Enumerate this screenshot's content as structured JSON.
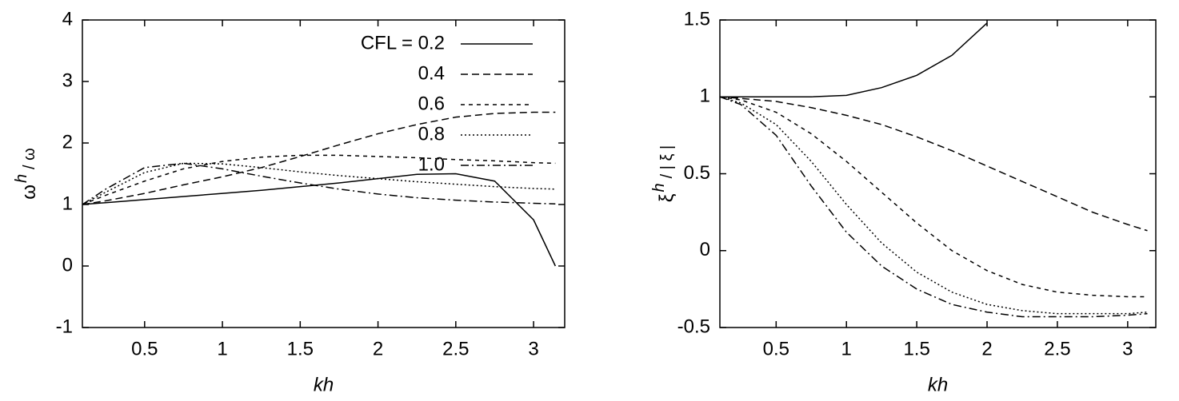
{
  "chart_data": [
    {
      "type": "line",
      "x": [
        0.1,
        0.25,
        0.5,
        0.75,
        1,
        1.25,
        1.5,
        1.75,
        2,
        2.25,
        2.5,
        2.75,
        3,
        3.14
      ],
      "xlim": [
        0.1,
        3.2
      ],
      "ylim": [
        -1,
        4
      ],
      "xticks": [
        0.5,
        1,
        1.5,
        2,
        2.5,
        3
      ],
      "yticks": [
        -1,
        0,
        1,
        2,
        3,
        4
      ],
      "xlabel": "kh",
      "ylabel": [
        "ω",
        "h",
        "/ ω"
      ],
      "legend": "upper right",
      "series": [
        {
          "name": "CFL = 0.2",
          "color": "#000000",
          "dash": "none",
          "values": [
            1.0,
            1.03,
            1.08,
            1.13,
            1.18,
            1.23,
            1.29,
            1.35,
            1.42,
            1.49,
            1.5,
            1.38,
            0.75,
            0
          ]
        },
        {
          "name": "0.4",
          "color": "#000000",
          "dash": "9,5",
          "values": [
            1,
            1.06,
            1.18,
            1.32,
            1.45,
            1.6,
            1.78,
            1.97,
            2.15,
            2.3,
            2.42,
            2.48,
            2.5,
            2.5
          ]
        },
        {
          "name": "0.6",
          "color": "#000000",
          "dash": "5,5",
          "values": [
            1,
            1.15,
            1.38,
            1.58,
            1.7,
            1.77,
            1.8,
            1.8,
            1.78,
            1.76,
            1.73,
            1.71,
            1.68,
            1.67
          ]
        },
        {
          "name": "0.8",
          "color": "#000000",
          "dash": "2,3",
          "values": [
            1,
            1.2,
            1.52,
            1.67,
            1.66,
            1.6,
            1.53,
            1.47,
            1.42,
            1.37,
            1.33,
            1.29,
            1.26,
            1.25
          ]
        },
        {
          "name": "1.0",
          "color": "#000000",
          "dash": "10,4,2,4",
          "values": [
            1,
            1.25,
            1.6,
            1.67,
            1.58,
            1.46,
            1.35,
            1.25,
            1.17,
            1.11,
            1.07,
            1.04,
            1.02,
            1.01
          ]
        }
      ]
    },
    {
      "type": "line",
      "x": [
        0.1,
        0.25,
        0.5,
        0.75,
        1,
        1.25,
        1.5,
        1.75,
        2,
        2.25,
        2.5,
        2.75,
        3,
        3.14
      ],
      "xlim": [
        0.1,
        3.2
      ],
      "ylim": [
        -0.5,
        1.5
      ],
      "xticks": [
        0.5,
        1,
        1.5,
        2,
        2.5,
        3
      ],
      "yticks": [
        -0.5,
        0,
        0.5,
        1,
        1.5
      ],
      "xlabel": "kh",
      "ylabel": [
        "ξ",
        "h",
        "/ | ξ |"
      ],
      "series": [
        {
          "color": "#000000",
          "dash": "none",
          "values": [
            1,
            1,
            1,
            1,
            1.01,
            1.06,
            1.14,
            1.27,
            1.48,
            null,
            null,
            null,
            null,
            null
          ]
        },
        {
          "color": "#000000",
          "dash": "9,5",
          "values": [
            1,
            0.99,
            0.97,
            0.93,
            0.88,
            0.82,
            0.74,
            0.65,
            0.55,
            0.45,
            0.35,
            0.25,
            0.17,
            0.13
          ]
        },
        {
          "color": "#000000",
          "dash": "5,5",
          "values": [
            1,
            0.98,
            0.9,
            0.76,
            0.58,
            0.38,
            0.18,
            0.0,
            -0.13,
            -0.22,
            -0.27,
            -0.29,
            -0.3,
            -0.3
          ]
        },
        {
          "color": "#000000",
          "dash": "2,3",
          "values": [
            1,
            0.96,
            0.82,
            0.58,
            0.3,
            0.05,
            -0.14,
            -0.27,
            -0.35,
            -0.39,
            -0.41,
            -0.41,
            -0.41,
            -0.4
          ]
        },
        {
          "color": "#000000",
          "dash": "10,4,2,4",
          "values": [
            1,
            0.95,
            0.75,
            0.42,
            0.12,
            -0.1,
            -0.25,
            -0.35,
            -0.4,
            -0.43,
            -0.43,
            -0.43,
            -0.42,
            -0.41
          ]
        }
      ]
    }
  ]
}
